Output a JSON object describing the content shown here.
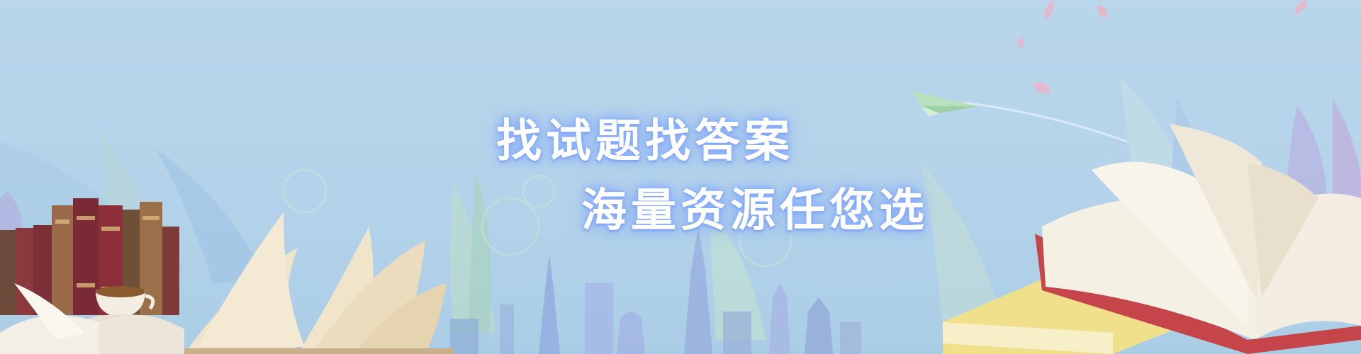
{
  "banner": {
    "headline_line1": "找试题找答案",
    "headline_line2": "海量资源任您选"
  },
  "colors": {
    "sky": "#b6d4ea",
    "headline_text": "#ffffff",
    "headline_glow": "#8fb2ff"
  }
}
